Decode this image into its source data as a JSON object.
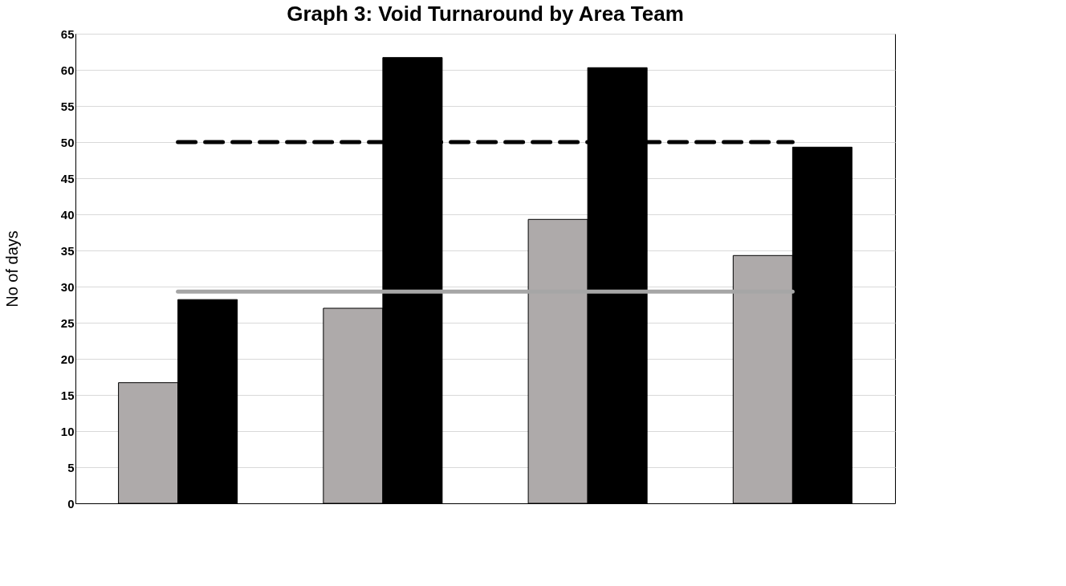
{
  "chart_data": {
    "type": "bar",
    "title": "Graph 3: Void Turnaround by Area Team",
    "ylabel": "No of days",
    "categories": [
      null,
      null,
      null,
      null
    ],
    "series": [
      {
        "color": "#aeaaaa",
        "values": [
          16.7,
          27.0,
          39.3,
          34.3
        ]
      },
      {
        "color": "#000000",
        "values": [
          28.2,
          61.7,
          60.3,
          49.3
        ]
      },
      {
        "type": "line",
        "color": "#000000",
        "line_style": "dashed",
        "values": [
          50.0,
          50.0,
          50.0,
          50.0
        ]
      },
      {
        "type": "line",
        "color": "#a6a6a6",
        "line_style": "solid",
        "values": [
          29.3,
          29.3,
          29.3,
          29.3
        ]
      }
    ],
    "ylim": [
      0,
      65
    ],
    "yticks": [
      0,
      5,
      10,
      15,
      20,
      25,
      30,
      35,
      40,
      45,
      50,
      55,
      60,
      65
    ],
    "grid": "y",
    "tick_labels": "y"
  }
}
